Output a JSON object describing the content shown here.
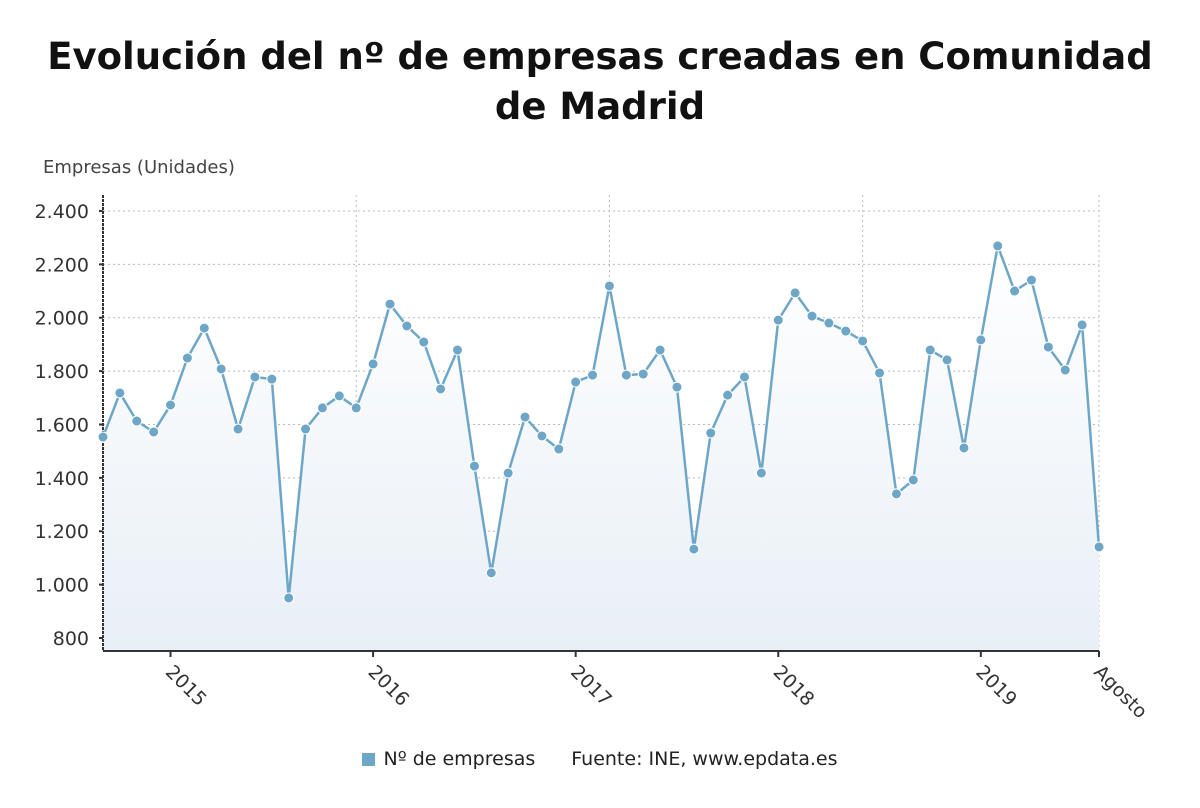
{
  "chart_data": {
    "type": "line",
    "title": "Evolución del nº de empresas creadas en Comunidad de Madrid",
    "ylabel": "Empresas (Unidades)",
    "xlabel": "",
    "ylim": [
      750,
      2460
    ],
    "yticks": [
      800,
      1000,
      1200,
      1400,
      1600,
      1800,
      2000,
      2200,
      2400
    ],
    "ytick_labels": [
      "800",
      "1.000",
      "1.200",
      "1.400",
      "1.600",
      "1.800",
      "2.000",
      "2.200",
      "2.400"
    ],
    "x_start": "2014-09",
    "x_end": "2019-08",
    "xtick_labels": [
      {
        "index": 4,
        "label": "2015"
      },
      {
        "index": 16,
        "label": "2016"
      },
      {
        "index": 28,
        "label": "2017"
      },
      {
        "index": 40,
        "label": "2018"
      },
      {
        "index": 52,
        "label": "2019"
      },
      {
        "index": 59,
        "label": "Agosto"
      }
    ],
    "grid": true,
    "legend_position": "bottom",
    "series": [
      {
        "name": "Nº de empresas",
        "color": "#6ea6c8",
        "values": [
          1553,
          1718,
          1613,
          1572,
          1673,
          1849,
          1961,
          1808,
          1583,
          1778,
          1770,
          950,
          1583,
          1662,
          1707,
          1662,
          1827,
          2051,
          1969,
          1909,
          1733,
          1879,
          1444,
          1044,
          1418,
          1628,
          1557,
          1508,
          1759,
          1785,
          2119,
          1785,
          1789,
          1879,
          1740,
          1133,
          1568,
          1710,
          1778,
          1418,
          1991,
          2093,
          2006,
          1980,
          1950,
          1913,
          1793,
          1340,
          1392,
          1879,
          1842,
          1512,
          1917,
          2269,
          2100,
          2141,
          1890,
          1804,
          1973,
          1141
        ]
      }
    ],
    "source": "Fuente: INE, www.epdata.es"
  }
}
